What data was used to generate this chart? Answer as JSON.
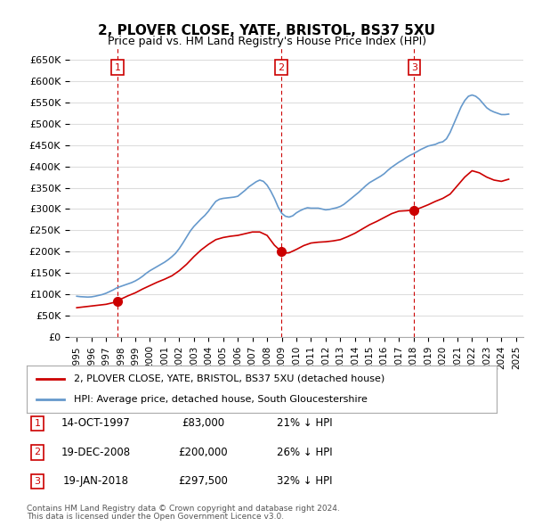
{
  "title": "2, PLOVER CLOSE, YATE, BRISTOL, BS37 5XU",
  "subtitle": "Price paid vs. HM Land Registry's House Price Index (HPI)",
  "legend_line1": "2, PLOVER CLOSE, YATE, BRISTOL, BS37 5XU (detached house)",
  "legend_line2": "HPI: Average price, detached house, South Gloucestershire",
  "footer1": "Contains HM Land Registry data © Crown copyright and database right 2024.",
  "footer2": "This data is licensed under the Open Government Licence v3.0.",
  "sales": [
    {
      "label": "1",
      "date": "14-OCT-1997",
      "price": 83000,
      "pct": "21%",
      "x": 1997.79
    },
    {
      "label": "2",
      "date": "19-DEC-2008",
      "price": 200000,
      "pct": "26%",
      "x": 2008.97
    },
    {
      "label": "3",
      "date": "19-JAN-2018",
      "price": 297500,
      "pct": "32%",
      "x": 2018.05
    }
  ],
  "hpi_x": [
    1995.0,
    1995.25,
    1995.5,
    1995.75,
    1996.0,
    1996.25,
    1996.5,
    1996.75,
    1997.0,
    1997.25,
    1997.5,
    1997.75,
    1998.0,
    1998.25,
    1998.5,
    1998.75,
    1999.0,
    1999.25,
    1999.5,
    1999.75,
    2000.0,
    2000.25,
    2000.5,
    2000.75,
    2001.0,
    2001.25,
    2001.5,
    2001.75,
    2002.0,
    2002.25,
    2002.5,
    2002.75,
    2003.0,
    2003.25,
    2003.5,
    2003.75,
    2004.0,
    2004.25,
    2004.5,
    2004.75,
    2005.0,
    2005.25,
    2005.5,
    2005.75,
    2006.0,
    2006.25,
    2006.5,
    2006.75,
    2007.0,
    2007.25,
    2007.5,
    2007.75,
    2008.0,
    2008.25,
    2008.5,
    2008.75,
    2009.0,
    2009.25,
    2009.5,
    2009.75,
    2010.0,
    2010.25,
    2010.5,
    2010.75,
    2011.0,
    2011.25,
    2011.5,
    2011.75,
    2012.0,
    2012.25,
    2012.5,
    2012.75,
    2013.0,
    2013.25,
    2013.5,
    2013.75,
    2014.0,
    2014.25,
    2014.5,
    2014.75,
    2015.0,
    2015.25,
    2015.5,
    2015.75,
    2016.0,
    2016.25,
    2016.5,
    2016.75,
    2017.0,
    2017.25,
    2017.5,
    2017.75,
    2018.0,
    2018.25,
    2018.5,
    2018.75,
    2019.0,
    2019.25,
    2019.5,
    2019.75,
    2020.0,
    2020.25,
    2020.5,
    2020.75,
    2021.0,
    2021.25,
    2021.5,
    2021.75,
    2022.0,
    2022.25,
    2022.5,
    2022.75,
    2023.0,
    2023.25,
    2023.5,
    2023.75,
    2024.0,
    2024.25,
    2024.5
  ],
  "hpi_y": [
    95000,
    94000,
    93500,
    93000,
    93500,
    95000,
    97000,
    99000,
    102000,
    106000,
    110000,
    115000,
    118000,
    121000,
    124000,
    127000,
    131000,
    136000,
    142000,
    149000,
    155000,
    160000,
    165000,
    170000,
    175000,
    181000,
    188000,
    196000,
    207000,
    220000,
    234000,
    248000,
    259000,
    268000,
    277000,
    285000,
    295000,
    307000,
    318000,
    323000,
    325000,
    326000,
    327000,
    328000,
    330000,
    337000,
    344000,
    352000,
    358000,
    364000,
    368000,
    365000,
    356000,
    342000,
    325000,
    305000,
    290000,
    283000,
    281000,
    284000,
    291000,
    296000,
    300000,
    303000,
    302000,
    302000,
    302000,
    300000,
    298000,
    299000,
    301000,
    303000,
    306000,
    311000,
    318000,
    325000,
    332000,
    339000,
    347000,
    355000,
    362000,
    367000,
    372000,
    377000,
    383000,
    391000,
    398000,
    404000,
    410000,
    415000,
    421000,
    426000,
    430000,
    435000,
    440000,
    444000,
    448000,
    450000,
    452000,
    456000,
    458000,
    465000,
    480000,
    500000,
    520000,
    540000,
    555000,
    565000,
    568000,
    565000,
    558000,
    548000,
    538000,
    532000,
    528000,
    525000,
    522000,
    522000,
    523000
  ],
  "price_x": [
    1995.0,
    1995.5,
    1996.0,
    1996.5,
    1997.0,
    1997.5,
    1997.79,
    1998.0,
    1998.5,
    1999.0,
    1999.5,
    2000.0,
    2000.5,
    2001.0,
    2001.5,
    2002.0,
    2002.5,
    2003.0,
    2003.5,
    2004.0,
    2004.5,
    2005.0,
    2005.5,
    2006.0,
    2006.5,
    2007.0,
    2007.5,
    2008.0,
    2008.5,
    2008.97,
    2009.0,
    2009.5,
    2010.0,
    2010.5,
    2011.0,
    2011.5,
    2012.0,
    2012.5,
    2013.0,
    2013.5,
    2014.0,
    2014.5,
    2015.0,
    2015.5,
    2016.0,
    2016.5,
    2017.0,
    2017.5,
    2018.05,
    2018.5,
    2019.0,
    2019.5,
    2020.0,
    2020.5,
    2021.0,
    2021.5,
    2022.0,
    2022.5,
    2023.0,
    2023.5,
    2024.0,
    2024.5
  ],
  "price_y": [
    68000,
    70000,
    72000,
    74000,
    76000,
    80000,
    83000,
    88000,
    96000,
    103000,
    112000,
    120000,
    128000,
    135000,
    143000,
    155000,
    170000,
    188000,
    204000,
    217000,
    228000,
    233000,
    236000,
    238000,
    242000,
    246000,
    246000,
    238000,
    215000,
    200000,
    196000,
    197000,
    205000,
    214000,
    220000,
    222000,
    223000,
    225000,
    228000,
    235000,
    243000,
    253000,
    263000,
    271000,
    280000,
    289000,
    295000,
    296000,
    297500,
    303000,
    310000,
    318000,
    325000,
    335000,
    355000,
    375000,
    390000,
    385000,
    375000,
    368000,
    365000,
    370000
  ],
  "sale_color": "#cc0000",
  "hpi_color": "#6699cc",
  "price_color": "#cc0000",
  "bg_color": "#ffffff",
  "grid_color": "#dddddd",
  "ylabel": "",
  "ylim": [
    0,
    680000
  ],
  "xlim": [
    1994.5,
    2025.5
  ],
  "yticks": [
    0,
    50000,
    100000,
    150000,
    200000,
    250000,
    300000,
    350000,
    400000,
    450000,
    500000,
    550000,
    600000,
    650000
  ],
  "ytick_labels": [
    "£0",
    "£50K",
    "£100K",
    "£150K",
    "£200K",
    "£250K",
    "£300K",
    "£350K",
    "£400K",
    "£450K",
    "£500K",
    "£550K",
    "£600K",
    "£650K"
  ],
  "xticks": [
    1995,
    1996,
    1997,
    1998,
    1999,
    2000,
    2001,
    2002,
    2003,
    2004,
    2005,
    2006,
    2007,
    2008,
    2009,
    2010,
    2011,
    2012,
    2013,
    2014,
    2015,
    2016,
    2017,
    2018,
    2019,
    2020,
    2021,
    2022,
    2023,
    2024,
    2025
  ]
}
